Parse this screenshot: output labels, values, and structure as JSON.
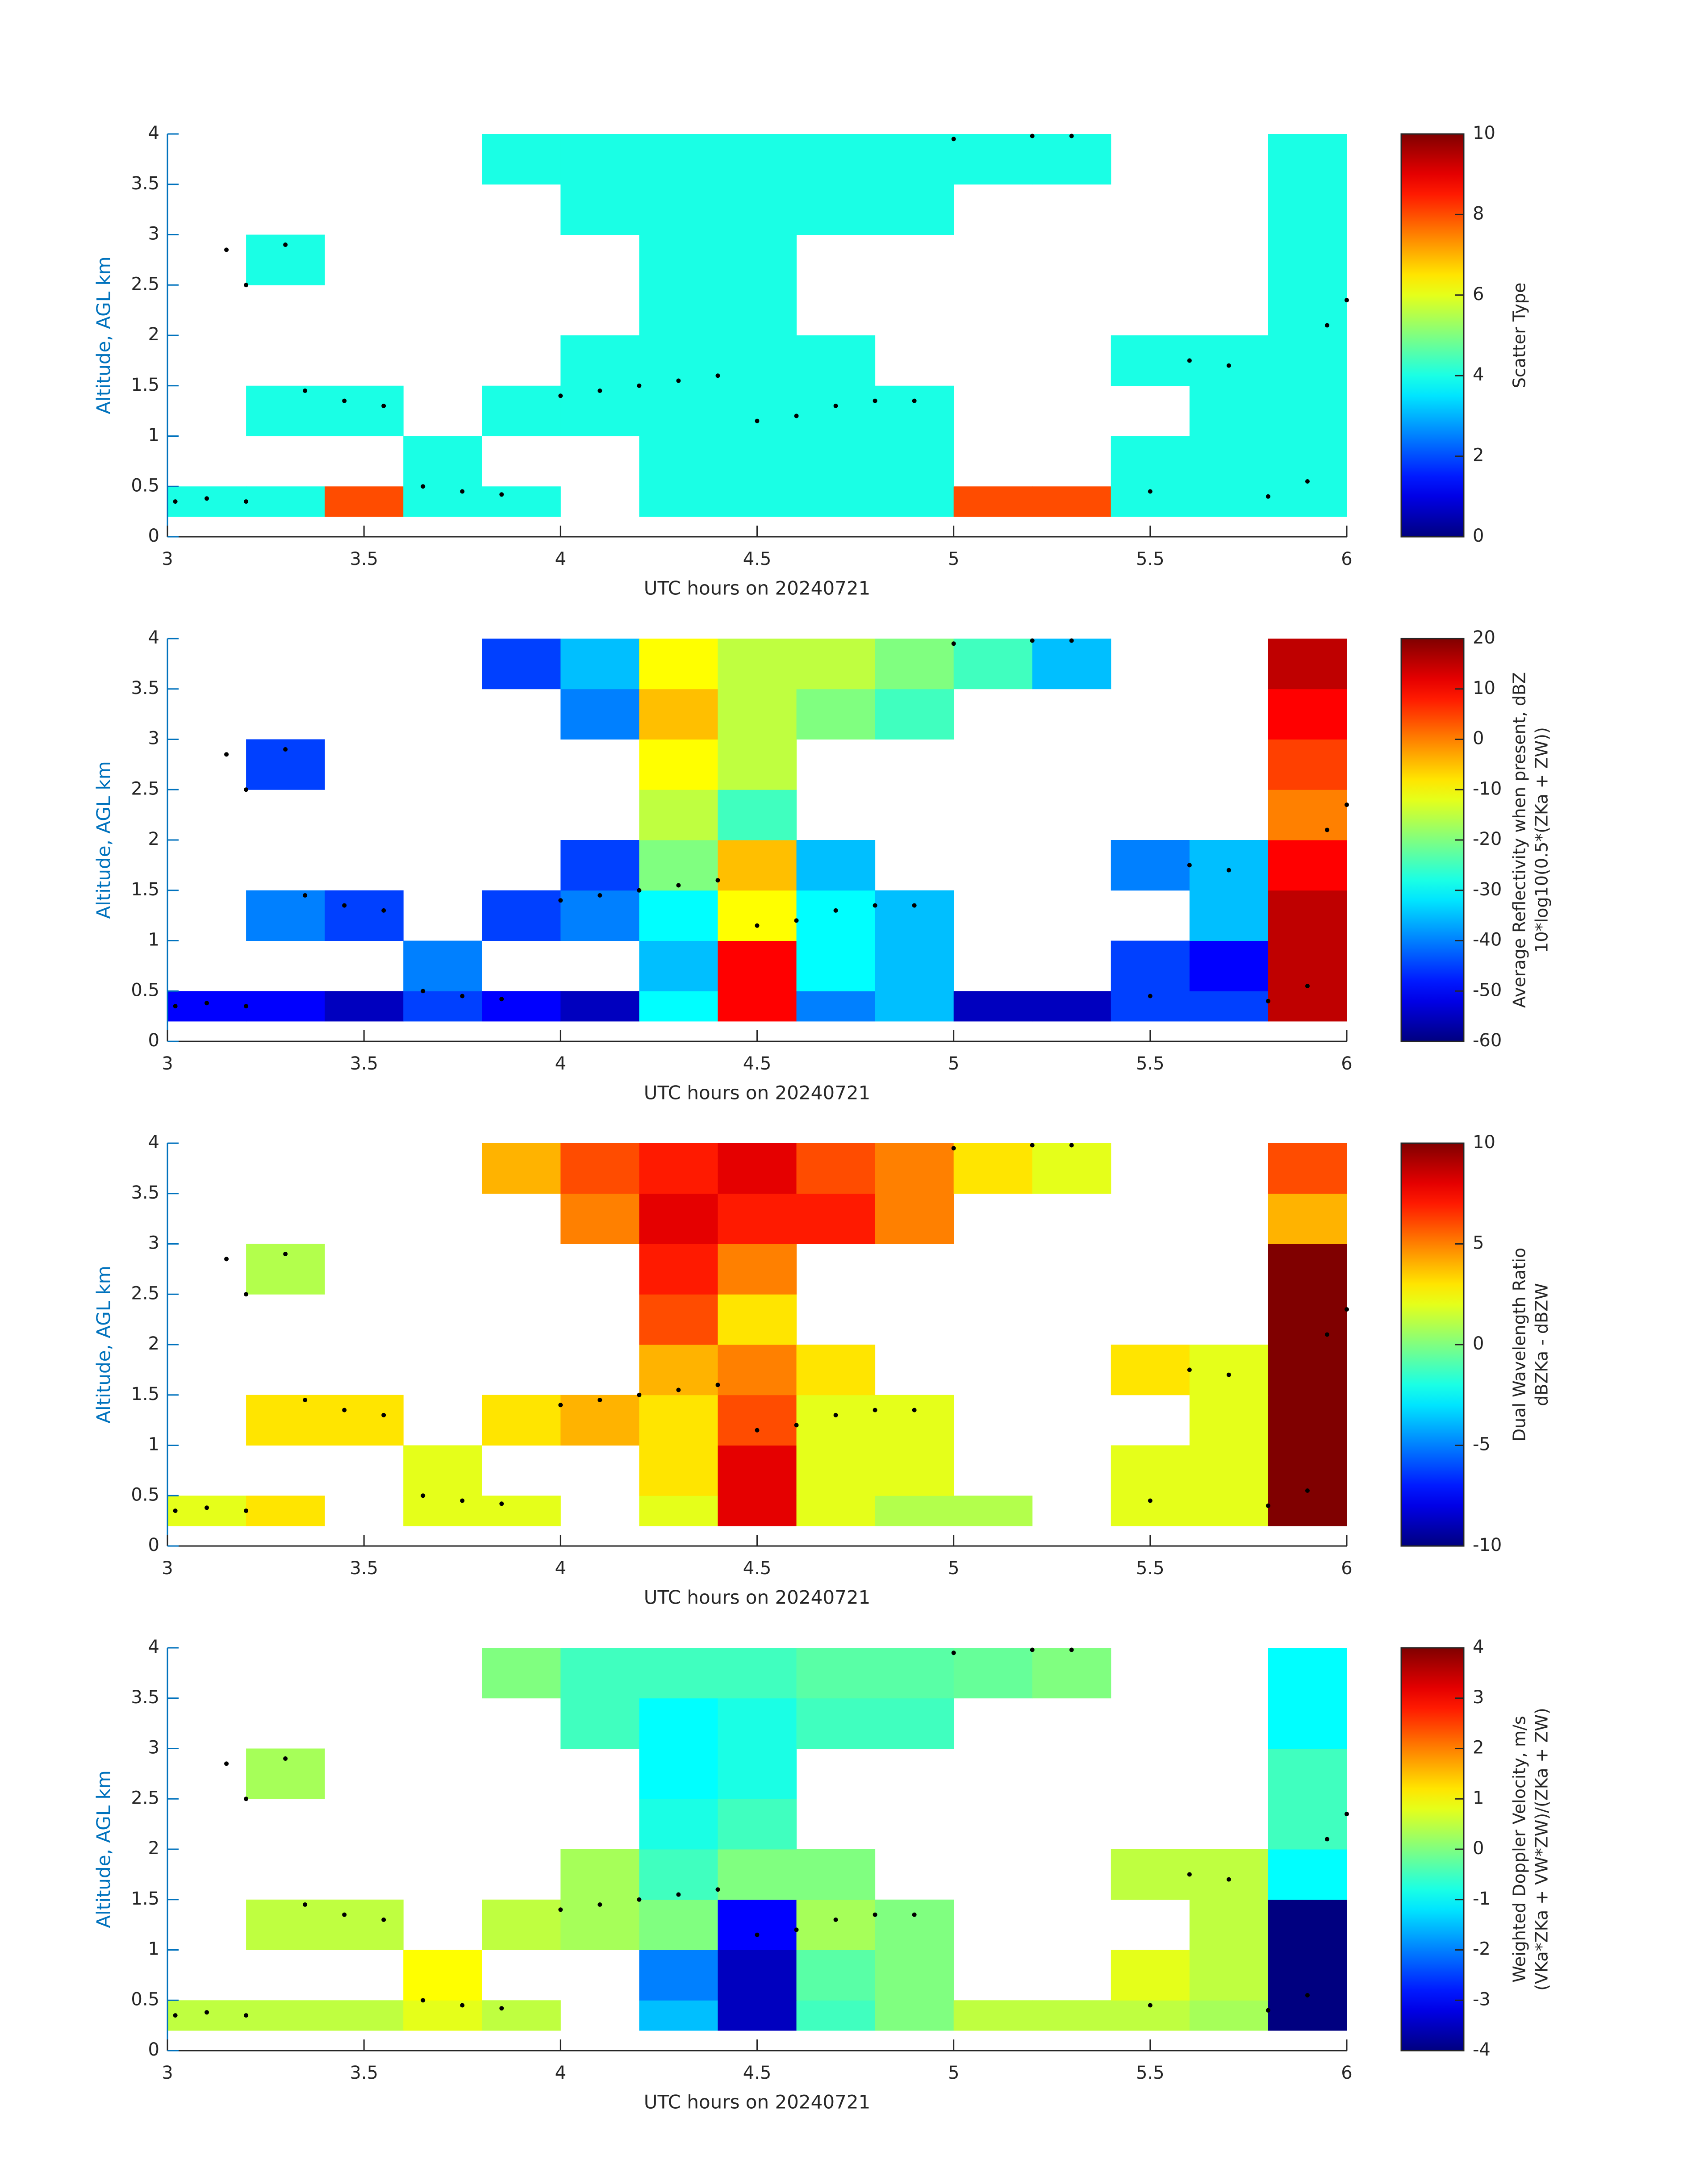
{
  "chart_data": [
    {
      "type": "heatmap",
      "colormap": "jet",
      "xlabel": "UTC hours on 20240721",
      "ylabel": "Altitude, AGL km",
      "colorbar_label": [
        "Scatter Type"
      ],
      "xlim": [
        3,
        6
      ],
      "ylim": [
        0,
        4
      ],
      "xticks": [
        3,
        3.5,
        4,
        4.5,
        5,
        5.5,
        6
      ],
      "yticks": [
        0,
        0.5,
        1,
        1.5,
        2,
        2.5,
        3,
        3.5,
        4
      ],
      "clim": [
        0,
        10
      ],
      "cticks": [
        0,
        2,
        4,
        6,
        8,
        10
      ],
      "x_edges": [
        3,
        3.2,
        3.4,
        3.6,
        3.8,
        4,
        4.2,
        4.4,
        4.6,
        4.8,
        5,
        5.2,
        5.4,
        5.6,
        5.8,
        6
      ],
      "y_edges": [
        0.2,
        0.5,
        1,
        1.5,
        2,
        2.5,
        3,
        3.5,
        4
      ],
      "z": [
        [
          4,
          4,
          8,
          4,
          4,
          null,
          4,
          4,
          4,
          4,
          8,
          8,
          4,
          4,
          4
        ],
        [
          null,
          null,
          null,
          4,
          null,
          null,
          4,
          4,
          4,
          4,
          null,
          null,
          4,
          4,
          4
        ],
        [
          null,
          4,
          4,
          null,
          4,
          4,
          4,
          4,
          4,
          4,
          null,
          null,
          null,
          4,
          4
        ],
        [
          null,
          null,
          null,
          null,
          null,
          4,
          4,
          4,
          4,
          null,
          null,
          null,
          4,
          4,
          4
        ],
        [
          null,
          null,
          null,
          null,
          null,
          null,
          4,
          4,
          null,
          null,
          null,
          null,
          null,
          null,
          4
        ],
        [
          null,
          4,
          null,
          null,
          null,
          null,
          4,
          4,
          null,
          null,
          null,
          null,
          null,
          null,
          4
        ],
        [
          null,
          null,
          null,
          null,
          null,
          4,
          4,
          4,
          4,
          4,
          null,
          null,
          null,
          null,
          4
        ],
        [
          null,
          null,
          null,
          null,
          4,
          4,
          4,
          4,
          4,
          4,
          4,
          4,
          null,
          null,
          4
        ]
      ],
      "points": {
        "color": "#000000",
        "x": [
          3.02,
          3.1,
          3.2,
          3.15,
          3.2,
          3.3,
          3.35,
          3.45,
          3.55,
          3.65,
          3.75,
          3.85,
          4.0,
          4.1,
          4.2,
          4.3,
          4.4,
          4.5,
          4.6,
          4.7,
          4.8,
          4.9,
          5.0,
          5.2,
          5.3,
          5.5,
          5.6,
          5.7,
          5.8,
          5.9,
          5.95,
          6.0
        ],
        "y": [
          0.35,
          0.38,
          0.35,
          2.85,
          2.5,
          2.9,
          1.45,
          1.35,
          1.3,
          0.5,
          0.45,
          0.42,
          1.4,
          1.45,
          1.5,
          1.55,
          1.6,
          1.15,
          1.2,
          1.3,
          1.35,
          1.35,
          3.95,
          3.98,
          3.98,
          0.45,
          1.75,
          1.7,
          0.4,
          0.55,
          2.1,
          2.35
        ]
      }
    },
    {
      "type": "heatmap",
      "colormap": "jet",
      "xlabel": "UTC hours on 20240721",
      "ylabel": "Altitude, AGL km",
      "colorbar_label": [
        "Average Reflectivity when present, dBZ",
        "10*log10(0.5*(ZKa + ZW))"
      ],
      "xlim": [
        3,
        6
      ],
      "ylim": [
        0,
        4
      ],
      "xticks": [
        3,
        3.5,
        4,
        4.5,
        5,
        5.5,
        6
      ],
      "yticks": [
        0,
        0.5,
        1,
        1.5,
        2,
        2.5,
        3,
        3.5,
        4
      ],
      "clim": [
        -60,
        20
      ],
      "cticks": [
        -60,
        -50,
        -40,
        -30,
        -20,
        -10,
        0,
        10,
        20
      ],
      "x_edges": [
        3,
        3.2,
        3.4,
        3.6,
        3.8,
        4,
        4.2,
        4.4,
        4.6,
        4.8,
        5,
        5.2,
        5.4,
        5.6,
        5.8,
        6
      ],
      "y_edges": [
        0.2,
        0.5,
        1,
        1.5,
        2,
        2.5,
        3,
        3.5,
        4
      ],
      "z": [
        [
          -50,
          -50,
          -55,
          -45,
          -50,
          -55,
          -30,
          10,
          -40,
          -35,
          -55,
          -55,
          -45,
          -45,
          15
        ],
        [
          null,
          null,
          null,
          -40,
          null,
          null,
          -35,
          10,
          -30,
          -35,
          null,
          null,
          -45,
          -50,
          15
        ],
        [
          null,
          -40,
          -45,
          null,
          -45,
          -40,
          -30,
          -10,
          -30,
          -35,
          null,
          null,
          null,
          -35,
          15
        ],
        [
          null,
          null,
          null,
          null,
          null,
          -45,
          -20,
          -5,
          -35,
          null,
          null,
          null,
          -40,
          -35,
          10
        ],
        [
          null,
          null,
          null,
          null,
          null,
          null,
          -15,
          -25,
          null,
          null,
          null,
          null,
          null,
          null,
          0
        ],
        [
          null,
          -45,
          null,
          null,
          null,
          null,
          -10,
          -15,
          null,
          null,
          null,
          null,
          null,
          null,
          5
        ],
        [
          null,
          null,
          null,
          null,
          null,
          -40,
          -5,
          -15,
          -20,
          -25,
          null,
          null,
          null,
          null,
          10
        ],
        [
          null,
          null,
          null,
          null,
          -45,
          -35,
          -10,
          -15,
          -15,
          -20,
          -25,
          -35,
          null,
          null,
          15
        ]
      ],
      "points": {
        "color": "#000000",
        "x": [
          3.02,
          3.1,
          3.2,
          3.15,
          3.2,
          3.3,
          3.35,
          3.45,
          3.55,
          3.65,
          3.75,
          3.85,
          4.0,
          4.1,
          4.2,
          4.3,
          4.4,
          4.5,
          4.6,
          4.7,
          4.8,
          4.9,
          5.0,
          5.2,
          5.3,
          5.5,
          5.6,
          5.7,
          5.8,
          5.9,
          5.95,
          6.0
        ],
        "y": [
          0.35,
          0.38,
          0.35,
          2.85,
          2.5,
          2.9,
          1.45,
          1.35,
          1.3,
          0.5,
          0.45,
          0.42,
          1.4,
          1.45,
          1.5,
          1.55,
          1.6,
          1.15,
          1.2,
          1.3,
          1.35,
          1.35,
          3.95,
          3.98,
          3.98,
          0.45,
          1.75,
          1.7,
          0.4,
          0.55,
          2.1,
          2.35
        ]
      }
    },
    {
      "type": "heatmap",
      "colormap": "jet",
      "xlabel": "UTC hours on 20240721",
      "ylabel": "Altitude, AGL km",
      "colorbar_label": [
        "Dual Wavelength Ratio",
        "dBZKa - dBZW"
      ],
      "xlim": [
        3,
        6
      ],
      "ylim": [
        0,
        4
      ],
      "xticks": [
        3,
        3.5,
        4,
        4.5,
        5,
        5.5,
        6
      ],
      "yticks": [
        0,
        0.5,
        1,
        1.5,
        2,
        2.5,
        3,
        3.5,
        4
      ],
      "clim": [
        -10,
        10
      ],
      "cticks": [
        -10,
        -5,
        0,
        5,
        10
      ],
      "x_edges": [
        3,
        3.2,
        3.4,
        3.6,
        3.8,
        4,
        4.2,
        4.4,
        4.6,
        4.8,
        5,
        5.2,
        5.4,
        5.6,
        5.8,
        6
      ],
      "y_edges": [
        0.2,
        0.5,
        1,
        1.5,
        2,
        2.5,
        3,
        3.5,
        4
      ],
      "z": [
        [
          2,
          3,
          null,
          2,
          2,
          null,
          2,
          8,
          2,
          1,
          1,
          null,
          2,
          2,
          10
        ],
        [
          null,
          null,
          null,
          2,
          null,
          null,
          3,
          8,
          2,
          2,
          null,
          null,
          2,
          2,
          10
        ],
        [
          null,
          3,
          3,
          null,
          3,
          4,
          3,
          6,
          2,
          2,
          null,
          null,
          null,
          2,
          10
        ],
        [
          null,
          null,
          null,
          null,
          null,
          null,
          4,
          5,
          3,
          null,
          null,
          null,
          3,
          2,
          10
        ],
        [
          null,
          null,
          null,
          null,
          null,
          null,
          6,
          3,
          null,
          null,
          null,
          null,
          null,
          null,
          10
        ],
        [
          null,
          1,
          null,
          null,
          null,
          null,
          7,
          5,
          null,
          null,
          null,
          null,
          null,
          null,
          10
        ],
        [
          null,
          null,
          null,
          null,
          null,
          5,
          8,
          7,
          7,
          5,
          null,
          null,
          null,
          null,
          4
        ],
        [
          null,
          null,
          null,
          null,
          4,
          6,
          7,
          8,
          6,
          5,
          3,
          2,
          null,
          null,
          6
        ]
      ],
      "points": {
        "color": "#000000",
        "x": [
          3.02,
          3.1,
          3.2,
          3.15,
          3.2,
          3.3,
          3.35,
          3.45,
          3.55,
          3.65,
          3.75,
          3.85,
          4.0,
          4.1,
          4.2,
          4.3,
          4.4,
          4.5,
          4.6,
          4.7,
          4.8,
          4.9,
          5.0,
          5.2,
          5.3,
          5.5,
          5.6,
          5.7,
          5.8,
          5.9,
          5.95,
          6.0
        ],
        "y": [
          0.35,
          0.38,
          0.35,
          2.85,
          2.5,
          2.9,
          1.45,
          1.35,
          1.3,
          0.5,
          0.45,
          0.42,
          1.4,
          1.45,
          1.5,
          1.55,
          1.6,
          1.15,
          1.2,
          1.3,
          1.35,
          1.35,
          3.95,
          3.98,
          3.98,
          0.45,
          1.75,
          1.7,
          0.4,
          0.55,
          2.1,
          2.35
        ]
      }
    },
    {
      "type": "heatmap",
      "colormap": "jet",
      "xlabel": "UTC hours on 20240721",
      "ylabel": "Altitude, AGL km",
      "colorbar_label": [
        "Weighted Doppler Velocity, m/s",
        "(VKa*ZKa + VW*ZW)/(ZKa + ZW)"
      ],
      "xlim": [
        3,
        6
      ],
      "ylim": [
        0,
        4
      ],
      "xticks": [
        3,
        3.5,
        4,
        4.5,
        5,
        5.5,
        6
      ],
      "yticks": [
        0,
        0.5,
        1,
        1.5,
        2,
        2.5,
        3,
        3.5,
        4
      ],
      "clim": [
        -4,
        4
      ],
      "cticks": [
        -4,
        -3,
        -2,
        -1,
        0,
        1,
        2,
        3,
        4
      ],
      "x_edges": [
        3,
        3.2,
        3.4,
        3.6,
        3.8,
        4,
        4.2,
        4.4,
        4.6,
        4.8,
        5,
        5.2,
        5.4,
        5.6,
        5.8,
        6
      ],
      "y_edges": [
        0.2,
        0.5,
        1,
        1.5,
        2,
        2.5,
        3,
        3.5,
        4
      ],
      "z": [
        [
          0.5,
          0.5,
          0.5,
          0.8,
          0.5,
          null,
          -1.5,
          -3.5,
          -0.5,
          0,
          0.5,
          0.5,
          0.5,
          0.3,
          -4
        ],
        [
          null,
          null,
          null,
          1,
          null,
          null,
          -2,
          -3.5,
          -0.3,
          0,
          null,
          null,
          0.8,
          0.5,
          -4
        ],
        [
          null,
          0.5,
          0.5,
          null,
          0.5,
          0.3,
          0,
          -3,
          0.3,
          0,
          null,
          null,
          null,
          0.5,
          -4
        ],
        [
          null,
          null,
          null,
          null,
          null,
          0.3,
          -0.5,
          0,
          0,
          null,
          null,
          null,
          0.5,
          0.5,
          -1
        ],
        [
          null,
          null,
          null,
          null,
          null,
          null,
          -0.8,
          -0.5,
          null,
          null,
          null,
          null,
          null,
          null,
          -0.5
        ],
        [
          null,
          0.3,
          null,
          null,
          null,
          null,
          -1,
          -0.8,
          null,
          null,
          null,
          null,
          null,
          null,
          -0.5
        ],
        [
          null,
          null,
          null,
          null,
          null,
          -0.5,
          -1,
          -0.8,
          -0.5,
          -0.5,
          null,
          null,
          null,
          null,
          -1
        ],
        [
          null,
          null,
          null,
          null,
          0,
          -0.5,
          -0.5,
          -0.5,
          -0.3,
          -0.3,
          -0.2,
          0,
          null,
          null,
          -1
        ]
      ],
      "points": {
        "color": "#000000",
        "x": [
          3.02,
          3.1,
          3.2,
          3.15,
          3.2,
          3.3,
          3.35,
          3.45,
          3.55,
          3.65,
          3.75,
          3.85,
          4.0,
          4.1,
          4.2,
          4.3,
          4.4,
          4.5,
          4.6,
          4.7,
          4.8,
          4.9,
          5.0,
          5.2,
          5.3,
          5.5,
          5.6,
          5.7,
          5.8,
          5.9,
          5.95,
          6.0
        ],
        "y": [
          0.35,
          0.38,
          0.35,
          2.85,
          2.5,
          2.9,
          1.45,
          1.35,
          1.3,
          0.5,
          0.45,
          0.42,
          1.4,
          1.45,
          1.5,
          1.55,
          1.6,
          1.15,
          1.2,
          1.3,
          1.35,
          1.35,
          3.95,
          3.98,
          3.98,
          0.45,
          1.75,
          1.7,
          0.4,
          0.55,
          2.1,
          2.35
        ]
      }
    }
  ]
}
